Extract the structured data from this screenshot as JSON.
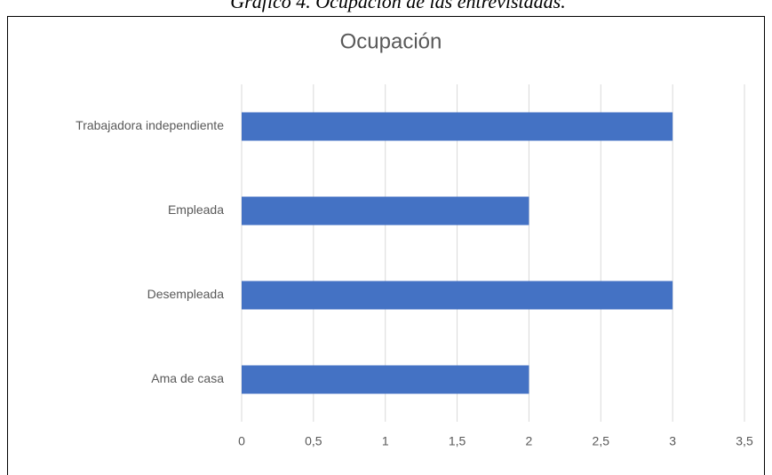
{
  "chart_data": {
    "type": "bar",
    "orientation": "horizontal",
    "caption": "Gráfico 4. Ocupación de las entrevistadas.",
    "title": "Ocupación",
    "categories": [
      "Trabajadora independiente",
      "Empleada",
      "Desempleada",
      "Ama de casa"
    ],
    "values": [
      3,
      2,
      3,
      2
    ],
    "color": "#4472c4",
    "xlim": [
      0,
      3.5
    ],
    "xticks": [
      0,
      {
        "value": 0.5,
        "label": "0,5"
      },
      1,
      {
        "value": 1.5,
        "label": "1,5"
      },
      2,
      {
        "value": 2.5,
        "label": "2,5"
      },
      3,
      {
        "value": 3.5,
        "label": "3,5"
      }
    ],
    "grid": true
  }
}
